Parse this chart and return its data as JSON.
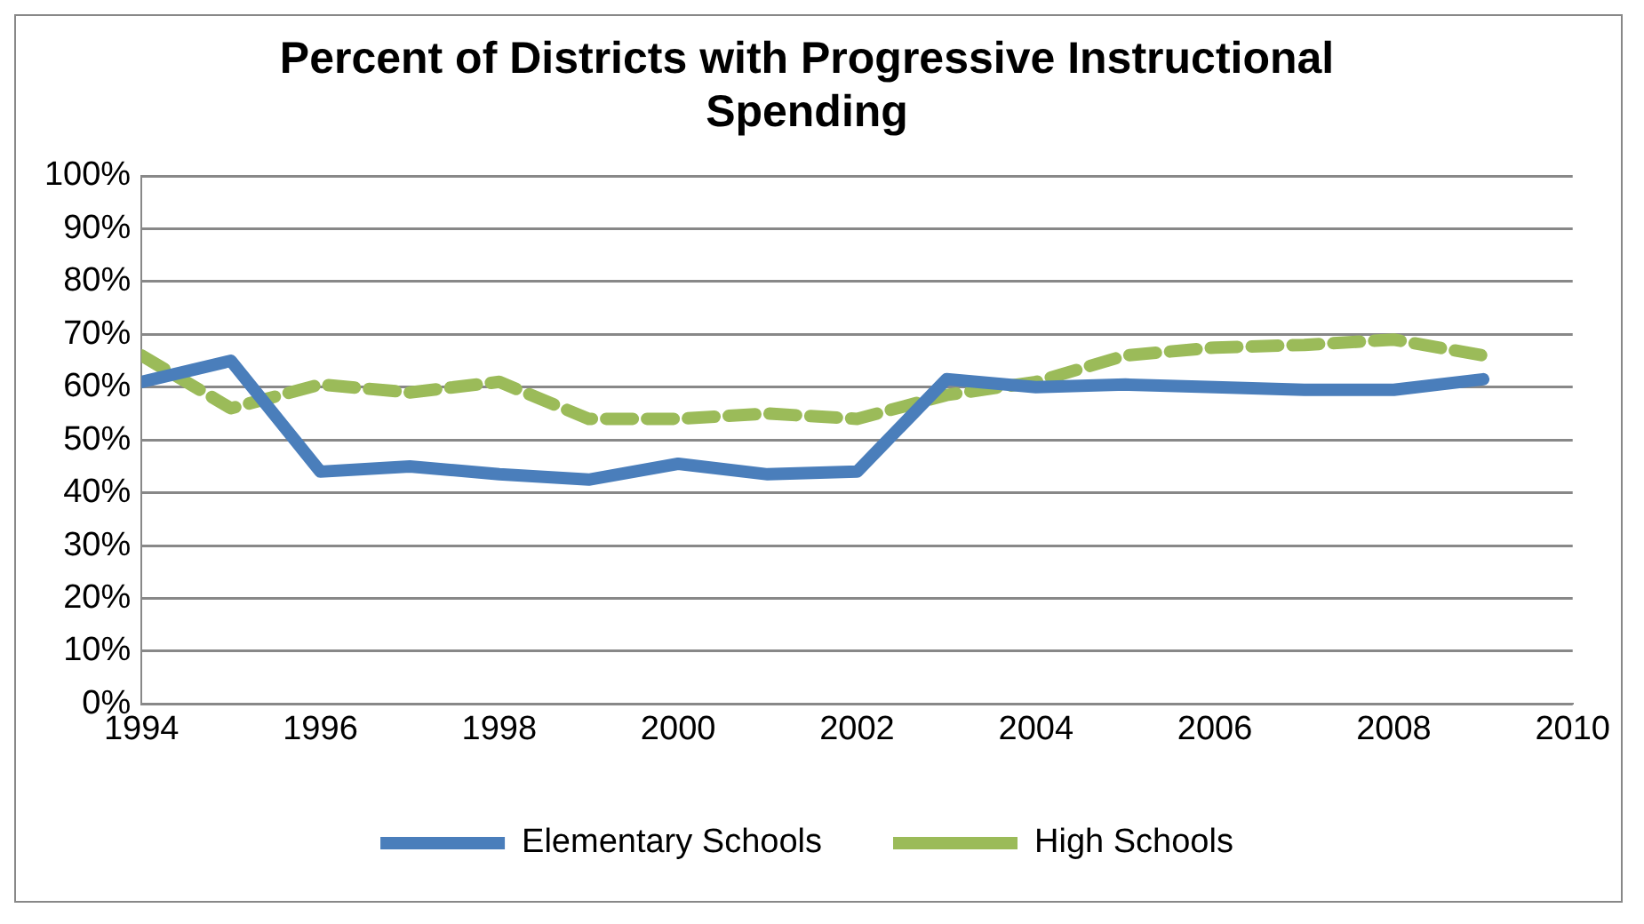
{
  "chart_data": {
    "type": "line",
    "title": "Percent of Districts with Progressive Instructional Spending",
    "x": [
      1994,
      1995,
      1996,
      1997,
      1998,
      1999,
      2000,
      2001,
      2002,
      2003,
      2004,
      2005,
      2006,
      2007,
      2008,
      2009
    ],
    "series": [
      {
        "name": "Elementary Schools",
        "color": "#4a7ebb",
        "line_style": "solid",
        "values": [
          61,
          65,
          44,
          45,
          43.5,
          42.5,
          45.5,
          43.5,
          44,
          61.5,
          60,
          60.5,
          60,
          59.5,
          59.5,
          61.5
        ]
      },
      {
        "name": "High Schools",
        "color": "#9bbb59",
        "line_style": "dashed",
        "values": [
          66,
          56,
          60.5,
          59,
          61,
          54,
          54,
          55,
          54,
          58.5,
          61,
          66,
          67.5,
          68,
          69,
          66
        ]
      }
    ],
    "xlim": [
      1994,
      2010
    ],
    "xticks": [
      1994,
      1996,
      1998,
      2000,
      2002,
      2004,
      2006,
      2008,
      2010
    ],
    "ylim": [
      0,
      100
    ],
    "yticks": [
      {
        "value": 0,
        "label": "0%"
      },
      {
        "value": 10,
        "label": "10%"
      },
      {
        "value": 20,
        "label": "20%"
      },
      {
        "value": 30,
        "label": "30%"
      },
      {
        "value": 40,
        "label": "40%"
      },
      {
        "value": 50,
        "label": "50%"
      },
      {
        "value": 60,
        "label": "60%"
      },
      {
        "value": 70,
        "label": "70%"
      },
      {
        "value": 80,
        "label": "80%"
      },
      {
        "value": 90,
        "label": "90%"
      },
      {
        "value": 100,
        "label": "100%"
      }
    ],
    "grid": "y",
    "legend": "bottom",
    "marker": "none"
  }
}
